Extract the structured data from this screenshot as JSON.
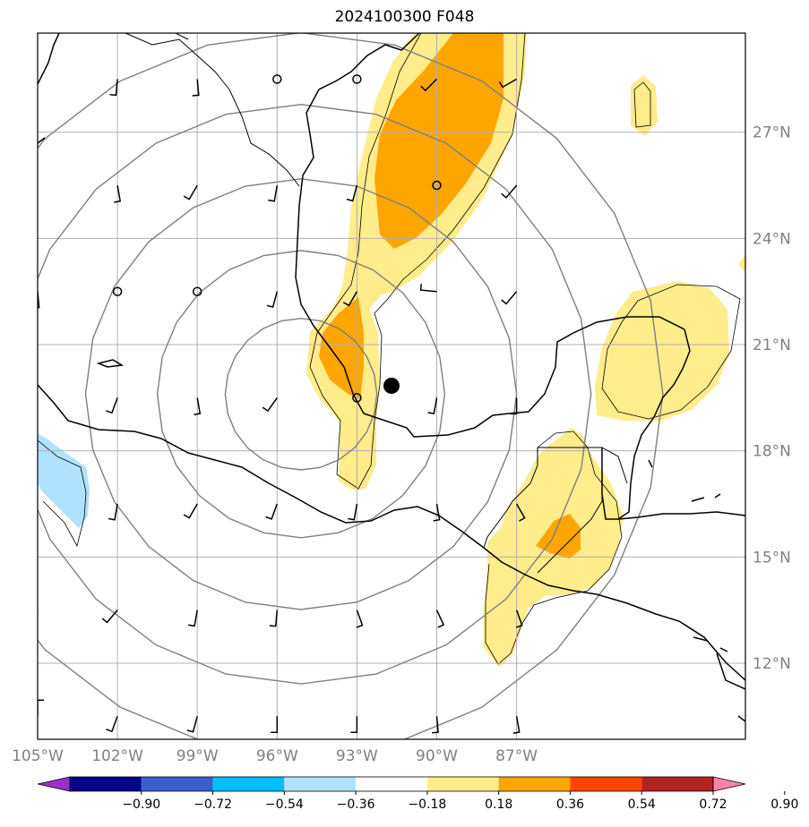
{
  "title": "2024100300 F048",
  "map": {
    "lon_range": [
      -105,
      -78.4
    ],
    "lat_range": [
      9.85,
      29.8
    ],
    "lon_ticks": [
      {
        "value": -105,
        "label": "105°W"
      },
      {
        "value": -102,
        "label": "102°W"
      },
      {
        "value": -99,
        "label": "99°W"
      },
      {
        "value": -96,
        "label": "96°W"
      },
      {
        "value": -93,
        "label": "93°W"
      },
      {
        "value": -90,
        "label": "90°W"
      },
      {
        "value": -87,
        "label": "87°W"
      }
    ],
    "lat_ticks": [
      {
        "value": 12,
        "label": "12°N"
      },
      {
        "value": 15,
        "label": "15°N"
      },
      {
        "value": 18,
        "label": "18°N"
      },
      {
        "value": 21,
        "label": "21°N"
      },
      {
        "value": 24,
        "label": "24°N"
      },
      {
        "value": 27,
        "label": "27°N"
      }
    ],
    "gridlines": true,
    "center": {
      "lon": -95.1,
      "lat": 19.6
    },
    "range_rings_deg": [
      2.85,
      5.4,
      8.1,
      10.9,
      13.6
    ]
  },
  "colorbar": {
    "ticks": [
      "−0.90",
      "−0.72",
      "−0.54",
      "−0.36",
      "−0.18",
      "0.18",
      "0.36",
      "0.54",
      "0.72",
      "0.90"
    ],
    "colors": [
      "#9932cc",
      "#00008b",
      "#3a5fcd",
      "#00bfff",
      "#b0e2ff",
      "#ffffff",
      "#ffec8b",
      "#ffa500",
      "#ff4500",
      "#b22222",
      "#ff82ab"
    ],
    "extend": "both"
  }
}
